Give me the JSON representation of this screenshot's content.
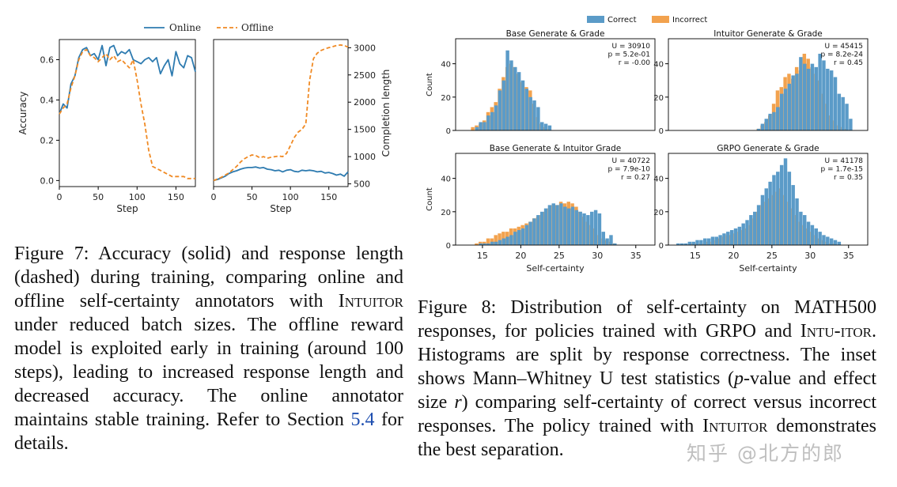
{
  "figure7": {
    "legend": {
      "online": "Online",
      "offline": "Offline"
    },
    "colors": {
      "online": "#2e7bb0",
      "offline": "#f08a24"
    },
    "chart_data": [
      {
        "type": "line",
        "xlabel": "Step",
        "ylabel": "Accuracy",
        "xlim": [
          0,
          175
        ],
        "ylim": [
          -0.03,
          0.7
        ],
        "xticks": [
          0,
          50,
          100,
          150
        ],
        "yticks": [
          0.0,
          0.2,
          0.4,
          0.6
        ],
        "ytick_labels": [
          "0.0",
          "0.2",
          "0.4",
          "0.6"
        ],
        "series": [
          {
            "name": "Online",
            "style": "solid",
            "x": [
              0,
              5,
              10,
              15,
              20,
              25,
              30,
              35,
              40,
              45,
              50,
              55,
              60,
              65,
              70,
              75,
              80,
              85,
              90,
              95,
              100,
              105,
              110,
              115,
              120,
              125,
              130,
              135,
              140,
              145,
              150,
              155,
              160,
              165,
              170,
              175
            ],
            "y": [
              0.33,
              0.38,
              0.36,
              0.48,
              0.52,
              0.61,
              0.65,
              0.66,
              0.62,
              0.63,
              0.6,
              0.67,
              0.57,
              0.66,
              0.67,
              0.62,
              0.64,
              0.63,
              0.65,
              0.6,
              0.59,
              0.58,
              0.6,
              0.61,
              0.59,
              0.61,
              0.53,
              0.57,
              0.6,
              0.52,
              0.64,
              0.58,
              0.56,
              0.62,
              0.61,
              0.54
            ]
          },
          {
            "name": "Offline",
            "style": "dashed",
            "x": [
              0,
              5,
              10,
              15,
              20,
              25,
              30,
              35,
              40,
              45,
              50,
              55,
              60,
              65,
              70,
              75,
              80,
              85,
              90,
              95,
              100,
              105,
              110,
              115,
              120,
              125,
              130,
              135,
              140,
              145,
              150,
              155,
              160,
              165,
              170,
              175
            ],
            "y": [
              0.33,
              0.36,
              0.38,
              0.46,
              0.52,
              0.6,
              0.64,
              0.65,
              0.62,
              0.61,
              0.59,
              0.61,
              0.63,
              0.6,
              0.62,
              0.59,
              0.6,
              0.58,
              0.56,
              0.6,
              0.5,
              0.38,
              0.28,
              0.15,
              0.07,
              0.06,
              0.05,
              0.04,
              0.03,
              0.02,
              0.02,
              0.02,
              0.02,
              0.01,
              0.01,
              0.01
            ]
          }
        ]
      },
      {
        "type": "line",
        "xlabel": "Step",
        "ylabel": "Completion length",
        "xlim": [
          0,
          175
        ],
        "ylim": [
          450,
          3150
        ],
        "xticks": [
          0,
          50,
          100,
          150
        ],
        "yticks": [
          500,
          1000,
          1500,
          2000,
          2500,
          3000
        ],
        "series": [
          {
            "name": "Online",
            "style": "solid",
            "x": [
              0,
              5,
              10,
              15,
              20,
              25,
              30,
              35,
              40,
              45,
              50,
              55,
              60,
              65,
              70,
              75,
              80,
              85,
              90,
              95,
              100,
              105,
              110,
              115,
              120,
              125,
              130,
              135,
              140,
              145,
              150,
              155,
              160,
              165,
              170,
              175
            ],
            "y": [
              560,
              580,
              610,
              640,
              690,
              720,
              740,
              770,
              790,
              800,
              800,
              810,
              790,
              800,
              770,
              760,
              740,
              750,
              720,
              750,
              760,
              730,
              720,
              750,
              740,
              750,
              740,
              720,
              730,
              700,
              710,
              690,
              660,
              680,
              640,
              720
            ]
          },
          {
            "name": "Offline",
            "style": "dashed",
            "x": [
              0,
              5,
              10,
              15,
              20,
              25,
              30,
              35,
              40,
              45,
              50,
              55,
              60,
              65,
              70,
              75,
              80,
              85,
              90,
              95,
              100,
              105,
              110,
              115,
              120,
              125,
              130,
              135,
              140,
              145,
              150,
              155,
              160,
              165,
              170,
              175
            ],
            "y": [
              560,
              590,
              620,
              660,
              700,
              760,
              820,
              900,
              960,
              1000,
              1030,
              1020,
              980,
              1000,
              970,
              990,
              1000,
              1010,
              1000,
              1060,
              1200,
              1350,
              1450,
              1500,
              1600,
              2400,
              2800,
              2900,
              2950,
              2980,
              3000,
              3020,
              3040,
              3050,
              3040,
              3010
            ]
          }
        ]
      }
    ],
    "caption": {
      "label": "Figure 7:",
      "pre": "Accuracy (solid) and response length (dashed) during training, comparing online and offline self-certainty annotators with",
      "intuitor": "Intuitor",
      "mid": "under reduced batch sizes. The offline reward model is exploited early in training (around 100 steps), leading to increased response length and decreased accuracy. The online annotator maintains stable training. Refer to Section",
      "ref": "5.4",
      "post": "for details."
    }
  },
  "figure8": {
    "legend": {
      "correct": "Correct",
      "incorrect": "Incorrect"
    },
    "colors": {
      "correct": "#5b9bc8",
      "incorrect": "#f2a24e"
    },
    "chart_data": [
      {
        "type": "bar",
        "title": "Base Generate & Grade",
        "xlabel": "",
        "ylabel": "Count",
        "xlim": [
          11.5,
          37.5
        ],
        "ylim": [
          0,
          55
        ],
        "yticks": [
          0,
          20,
          40
        ],
        "inset": [
          "U = 30910",
          "p = 5.2e-01",
          "r = -0.00"
        ],
        "bins": [
          13.5,
          14,
          14.5,
          15,
          15.5,
          16,
          16.5,
          17,
          17.5,
          18,
          18.5,
          19,
          19.5,
          20,
          20.5,
          21,
          21.5,
          22,
          22.5,
          23,
          23.5,
          24
        ],
        "correct": [
          0,
          0,
          2,
          5,
          5,
          9,
          11,
          15,
          24,
          30,
          48,
          42,
          38,
          35,
          30,
          25,
          20,
          18,
          14,
          5,
          4,
          3
        ],
        "incorrect": [
          2,
          3,
          4,
          6,
          11,
          14,
          17,
          25,
          32,
          38,
          40,
          38,
          34,
          29,
          26,
          24,
          16,
          8,
          4,
          2,
          1,
          0
        ]
      },
      {
        "type": "bar",
        "title": "Intuitor Generate & Grade",
        "xlabel": "",
        "ylabel": "",
        "xlim": [
          11.5,
          37.5
        ],
        "ylim": [
          0,
          55
        ],
        "yticks": [
          0,
          20,
          40
        ],
        "inset": [
          "U = 45415",
          "p = 8.2e-24",
          "r = 0.45"
        ],
        "bins": [
          23,
          23.5,
          24,
          24.5,
          25,
          25.5,
          26,
          26.5,
          27,
          27.5,
          28,
          28.5,
          29,
          29.5,
          30,
          30.5,
          31,
          31.5,
          32,
          32.5,
          33,
          33.5,
          34,
          34.5,
          35,
          35.5
        ],
        "correct": [
          0,
          1,
          4,
          7,
          10,
          11,
          14,
          22,
          25,
          28,
          33,
          34,
          44,
          40,
          37,
          40,
          38,
          46,
          42,
          37,
          36,
          32,
          22,
          20,
          16,
          7
        ],
        "incorrect": [
          1,
          3,
          5,
          9,
          16,
          24,
          26,
          32,
          34,
          31,
          38,
          36,
          46,
          43,
          38,
          34,
          30,
          22,
          16,
          9,
          6,
          3,
          2,
          1,
          0,
          0
        ]
      },
      {
        "type": "bar",
        "title": "Base Generate & Intuitor Grade",
        "xlabel": "Self-certainty",
        "ylabel": "Count",
        "xlim": [
          11.5,
          37.5
        ],
        "ylim": [
          0,
          55
        ],
        "yticks": [
          0,
          20,
          40
        ],
        "xticks": [
          15,
          20,
          25,
          30,
          35
        ],
        "inset": [
          "U = 40722",
          "p = 7.9e-10",
          "r = 0.27"
        ],
        "bins": [
          14,
          14.5,
          15,
          15.5,
          16,
          16.5,
          17,
          17.5,
          18,
          18.5,
          19,
          19.5,
          20,
          20.5,
          21,
          21.5,
          22,
          22.5,
          23,
          23.5,
          24,
          24.5,
          25,
          25.5,
          26,
          26.5,
          27,
          27.5,
          28,
          28.5,
          29,
          29.5,
          30,
          30.5,
          31,
          31.5,
          32,
          32.5,
          33
        ],
        "correct": [
          0,
          0,
          1,
          1,
          1,
          2,
          2,
          3,
          4,
          5,
          6,
          8,
          9,
          10,
          12,
          14,
          16,
          18,
          20,
          22,
          24,
          25,
          24,
          25,
          23,
          22,
          23,
          21,
          20,
          19,
          18,
          20,
          21,
          19,
          8,
          4,
          6,
          1,
          0
        ],
        "incorrect": [
          1,
          2,
          2,
          4,
          4,
          6,
          7,
          8,
          8,
          10,
          10,
          11,
          12,
          13,
          14,
          16,
          17,
          18,
          20,
          22,
          24,
          24,
          26,
          25,
          26,
          25,
          23,
          20,
          17,
          14,
          12,
          10,
          6,
          4,
          3,
          2,
          1,
          0,
          0
        ]
      },
      {
        "type": "bar",
        "title": "GRPO Generate & Grade",
        "xlabel": "Self-certainty",
        "ylabel": "",
        "xlim": [
          11.5,
          37.5
        ],
        "ylim": [
          0,
          55
        ],
        "yticks": [
          0,
          20,
          40
        ],
        "xticks": [
          15,
          20,
          25,
          30,
          35
        ],
        "inset": [
          "U = 41178",
          "p = 1.7e-15",
          "r = 0.35"
        ],
        "bins": [
          13,
          13.5,
          14,
          14.5,
          15,
          15.5,
          16,
          16.5,
          17,
          17.5,
          18,
          18.5,
          19,
          19.5,
          20,
          20.5,
          21,
          21.5,
          22,
          22.5,
          23,
          23.5,
          24,
          24.5,
          25,
          25.5,
          26,
          26.5,
          27,
          27.5,
          28,
          28.5,
          29,
          29.5,
          30,
          30.5,
          31,
          31.5,
          32,
          32.5,
          33,
          33.5,
          34
        ],
        "correct": [
          1,
          1,
          1,
          2,
          2,
          3,
          3,
          4,
          4,
          5,
          5,
          6,
          7,
          8,
          9,
          10,
          11,
          13,
          15,
          18,
          20,
          24,
          30,
          34,
          38,
          42,
          44,
          48,
          52,
          44,
          36,
          28,
          20,
          18,
          14,
          12,
          10,
          8,
          6,
          5,
          4,
          3,
          2
        ],
        "incorrect": [
          0,
          0,
          0,
          1,
          1,
          1,
          1,
          2,
          2,
          3,
          4,
          5,
          6,
          6,
          7,
          8,
          9,
          10,
          12,
          16,
          20,
          24,
          26,
          28,
          30,
          32,
          34,
          30,
          26,
          22,
          18,
          14,
          12,
          10,
          8,
          6,
          4,
          3,
          2,
          1,
          1,
          0,
          0
        ]
      }
    ],
    "caption": {
      "label": "Figure 8:",
      "pre": "Distribution of self-certainty on MATH500 responses, for policies trained with GRPO and",
      "intuitor1": "Intu-",
      "intuitor1b": "itor",
      "mid": ". Histograms are split by response correctness. The inset shows Mann–Whitney U test statistics (",
      "p": "p",
      "mid2": "-value and effect size",
      "r": "r",
      "mid3": ") comparing self-certainty of correct versus incorrect responses. The policy trained with",
      "intuitor2": "Intuitor",
      "post": "demonstrates the best separation."
    }
  },
  "watermark": "知乎 @北方的郎"
}
